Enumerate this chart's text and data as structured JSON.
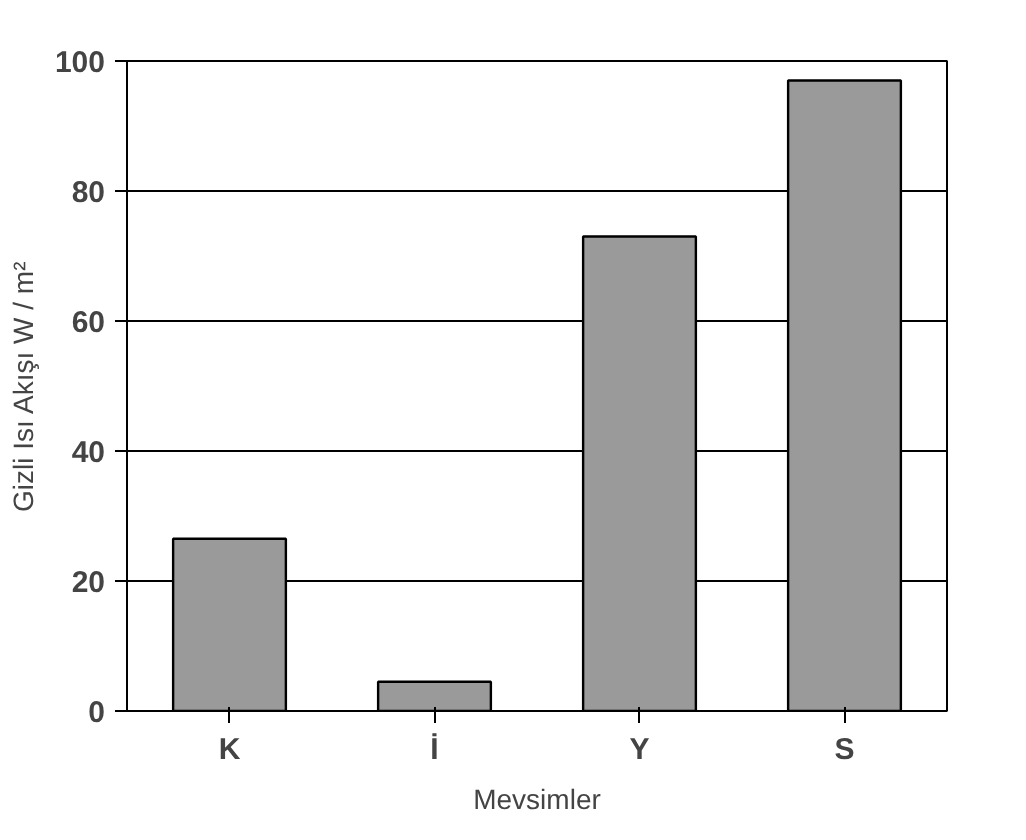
{
  "chart_data": {
    "type": "bar",
    "xlabel": "Mevsimler",
    "ylabel": "Gizli Isı Akışı W / m²",
    "categories": [
      "K",
      "İ",
      "Y",
      "S"
    ],
    "values": [
      26.5,
      4.5,
      73,
      97
    ],
    "color": "#9a9a9a",
    "ylim": [
      0,
      100
    ],
    "yticks": [
      0,
      20,
      40,
      60,
      80,
      100
    ],
    "grid": "y"
  }
}
